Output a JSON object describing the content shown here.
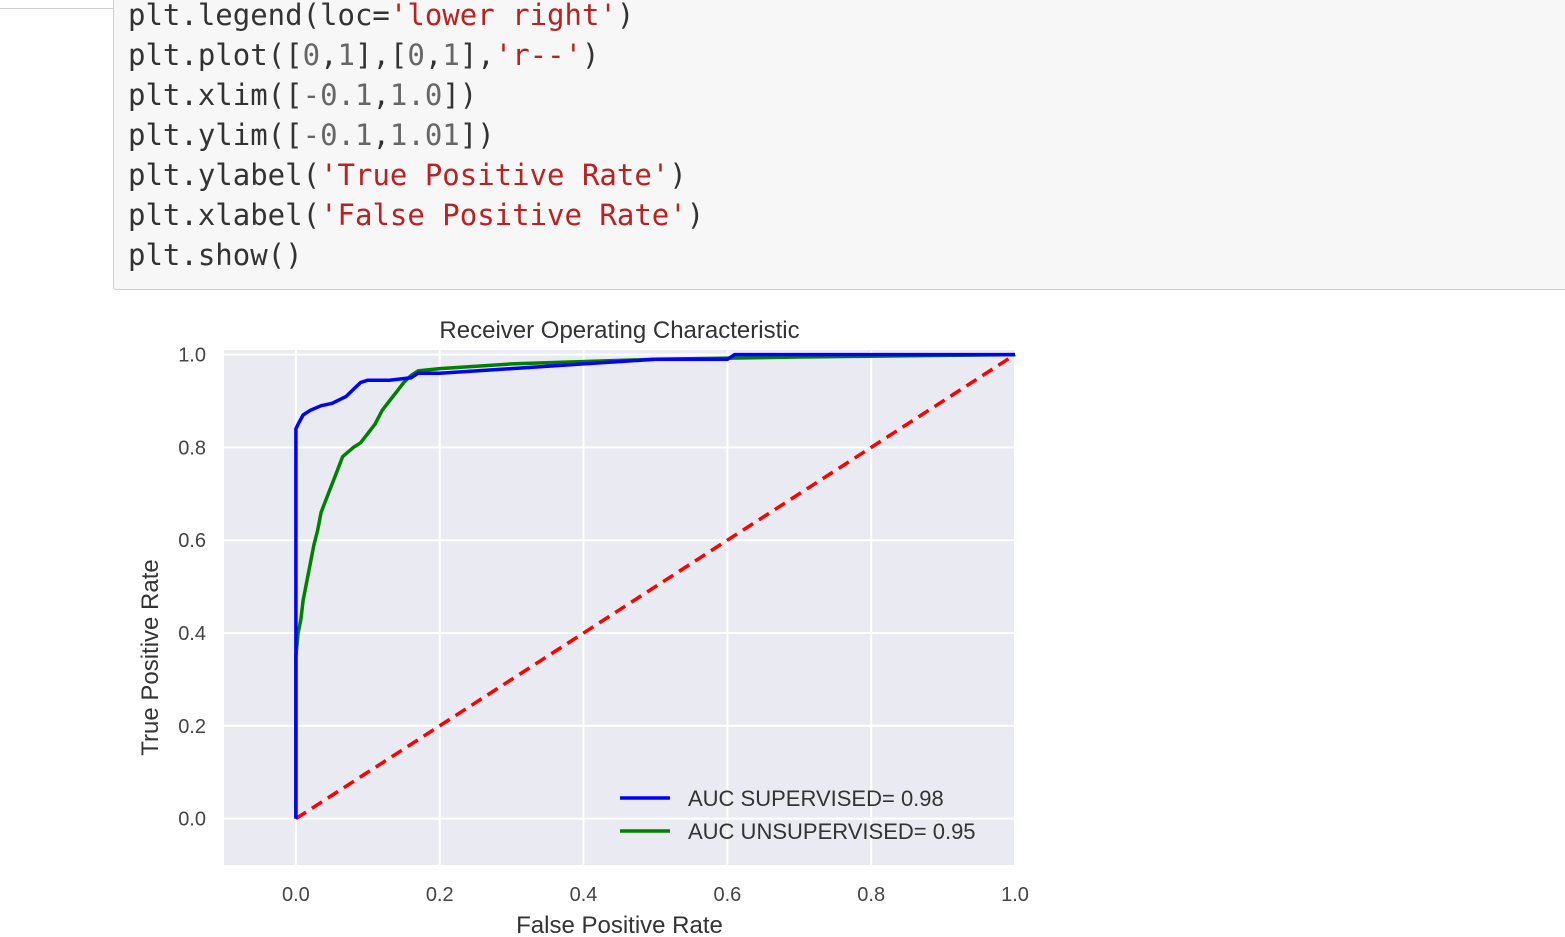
{
  "code": {
    "lines": [
      [
        {
          "t": "plt.legend(loc=",
          "c": "plain"
        },
        {
          "t": "'lower right'",
          "c": "str"
        },
        {
          "t": ")",
          "c": "plain"
        }
      ],
      [
        {
          "t": "plt.plot([",
          "c": "plain"
        },
        {
          "t": "0",
          "c": "num"
        },
        {
          "t": ",",
          "c": "plain"
        },
        {
          "t": "1",
          "c": "num"
        },
        {
          "t": "],[",
          "c": "plain"
        },
        {
          "t": "0",
          "c": "num"
        },
        {
          "t": ",",
          "c": "plain"
        },
        {
          "t": "1",
          "c": "num"
        },
        {
          "t": "],",
          "c": "plain"
        },
        {
          "t": "'r--'",
          "c": "str"
        },
        {
          "t": ")",
          "c": "plain"
        }
      ],
      [
        {
          "t": "plt.xlim([",
          "c": "plain"
        },
        {
          "t": "-0.1",
          "c": "num"
        },
        {
          "t": ",",
          "c": "plain"
        },
        {
          "t": "1.0",
          "c": "num"
        },
        {
          "t": "])",
          "c": "plain"
        }
      ],
      [
        {
          "t": "plt.ylim([",
          "c": "plain"
        },
        {
          "t": "-0.1",
          "c": "num"
        },
        {
          "t": ",",
          "c": "plain"
        },
        {
          "t": "1.01",
          "c": "num"
        },
        {
          "t": "])",
          "c": "plain"
        }
      ],
      [
        {
          "t": "plt.ylabel(",
          "c": "plain"
        },
        {
          "t": "'True Positive Rate'",
          "c": "str"
        },
        {
          "t": ")",
          "c": "plain"
        }
      ],
      [
        {
          "t": "plt.xlabel(",
          "c": "plain"
        },
        {
          "t": "'False Positive Rate'",
          "c": "str"
        },
        {
          "t": ")",
          "c": "plain"
        }
      ],
      [
        {
          "t": "plt.show()",
          "c": "plain"
        }
      ]
    ]
  },
  "colors": {
    "plot_background": "#eaeaf2",
    "grid": "#ffffff",
    "supervised": "#0000ff",
    "unsupervised": "#008000",
    "chance_line": "#ff0000",
    "code_string": "#ba2121",
    "code_number": "#666666"
  },
  "chart_data": {
    "type": "line",
    "title": "Receiver Operating Characteristic",
    "xlabel": "False Positive Rate",
    "ylabel": "True Positive Rate",
    "xlim": [
      -0.1,
      1.0
    ],
    "ylim": [
      -0.1,
      1.01
    ],
    "xticks": [
      "0.0",
      "0.2",
      "0.4",
      "0.6",
      "0.8",
      "1.0"
    ],
    "yticks": [
      "0.0",
      "0.2",
      "0.4",
      "0.6",
      "0.8",
      "1.0"
    ],
    "grid": true,
    "legend_position": "lower right",
    "series": [
      {
        "name": "AUC SUPERVISED= 0.98",
        "style": "solid",
        "x": [
          0.0,
          0.0,
          0.0,
          0.0,
          0.003,
          0.01,
          0.02,
          0.035,
          0.05,
          0.07,
          0.08,
          0.09,
          0.1,
          0.13,
          0.16,
          0.17,
          0.2,
          0.3,
          0.4,
          0.5,
          0.6,
          0.61,
          0.75,
          0.8,
          1.0
        ],
        "y": [
          0.0,
          0.4,
          0.7,
          0.84,
          0.85,
          0.87,
          0.88,
          0.89,
          0.895,
          0.91,
          0.925,
          0.94,
          0.945,
          0.945,
          0.95,
          0.96,
          0.96,
          0.97,
          0.98,
          0.99,
          0.99,
          1.0,
          1.0,
          1.0,
          1.0
        ]
      },
      {
        "name": "AUC UNSUPERVISED= 0.95",
        "style": "solid",
        "x": [
          0.0,
          0.0,
          0.003,
          0.007,
          0.01,
          0.015,
          0.02,
          0.025,
          0.03,
          0.035,
          0.045,
          0.055,
          0.065,
          0.08,
          0.09,
          0.1,
          0.11,
          0.12,
          0.13,
          0.14,
          0.15,
          0.16,
          0.17,
          0.2,
          0.3,
          0.5,
          0.7,
          1.0
        ],
        "y": [
          0.0,
          0.35,
          0.4,
          0.43,
          0.47,
          0.51,
          0.55,
          0.59,
          0.62,
          0.66,
          0.7,
          0.74,
          0.78,
          0.8,
          0.81,
          0.83,
          0.85,
          0.88,
          0.9,
          0.92,
          0.94,
          0.955,
          0.965,
          0.97,
          0.98,
          0.99,
          0.995,
          1.0
        ]
      },
      {
        "name": "",
        "style": "dashed",
        "x": [
          0.0,
          1.0
        ],
        "y": [
          0.0,
          1.0
        ]
      }
    ]
  }
}
